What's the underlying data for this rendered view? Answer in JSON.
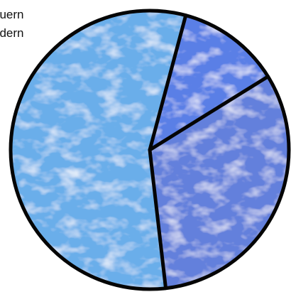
{
  "chart_data": {
    "type": "pie",
    "title": "",
    "legend_placement": "top-left",
    "legend": [
      "euern",
      "edern"
    ],
    "slices": [
      {
        "label": "",
        "value": 56,
        "color": "#6aaeea"
      },
      {
        "label": "",
        "value": 32,
        "color": "#6480dc"
      },
      {
        "label": "",
        "value": 12,
        "color": "#5a7fe6"
      }
    ]
  }
}
